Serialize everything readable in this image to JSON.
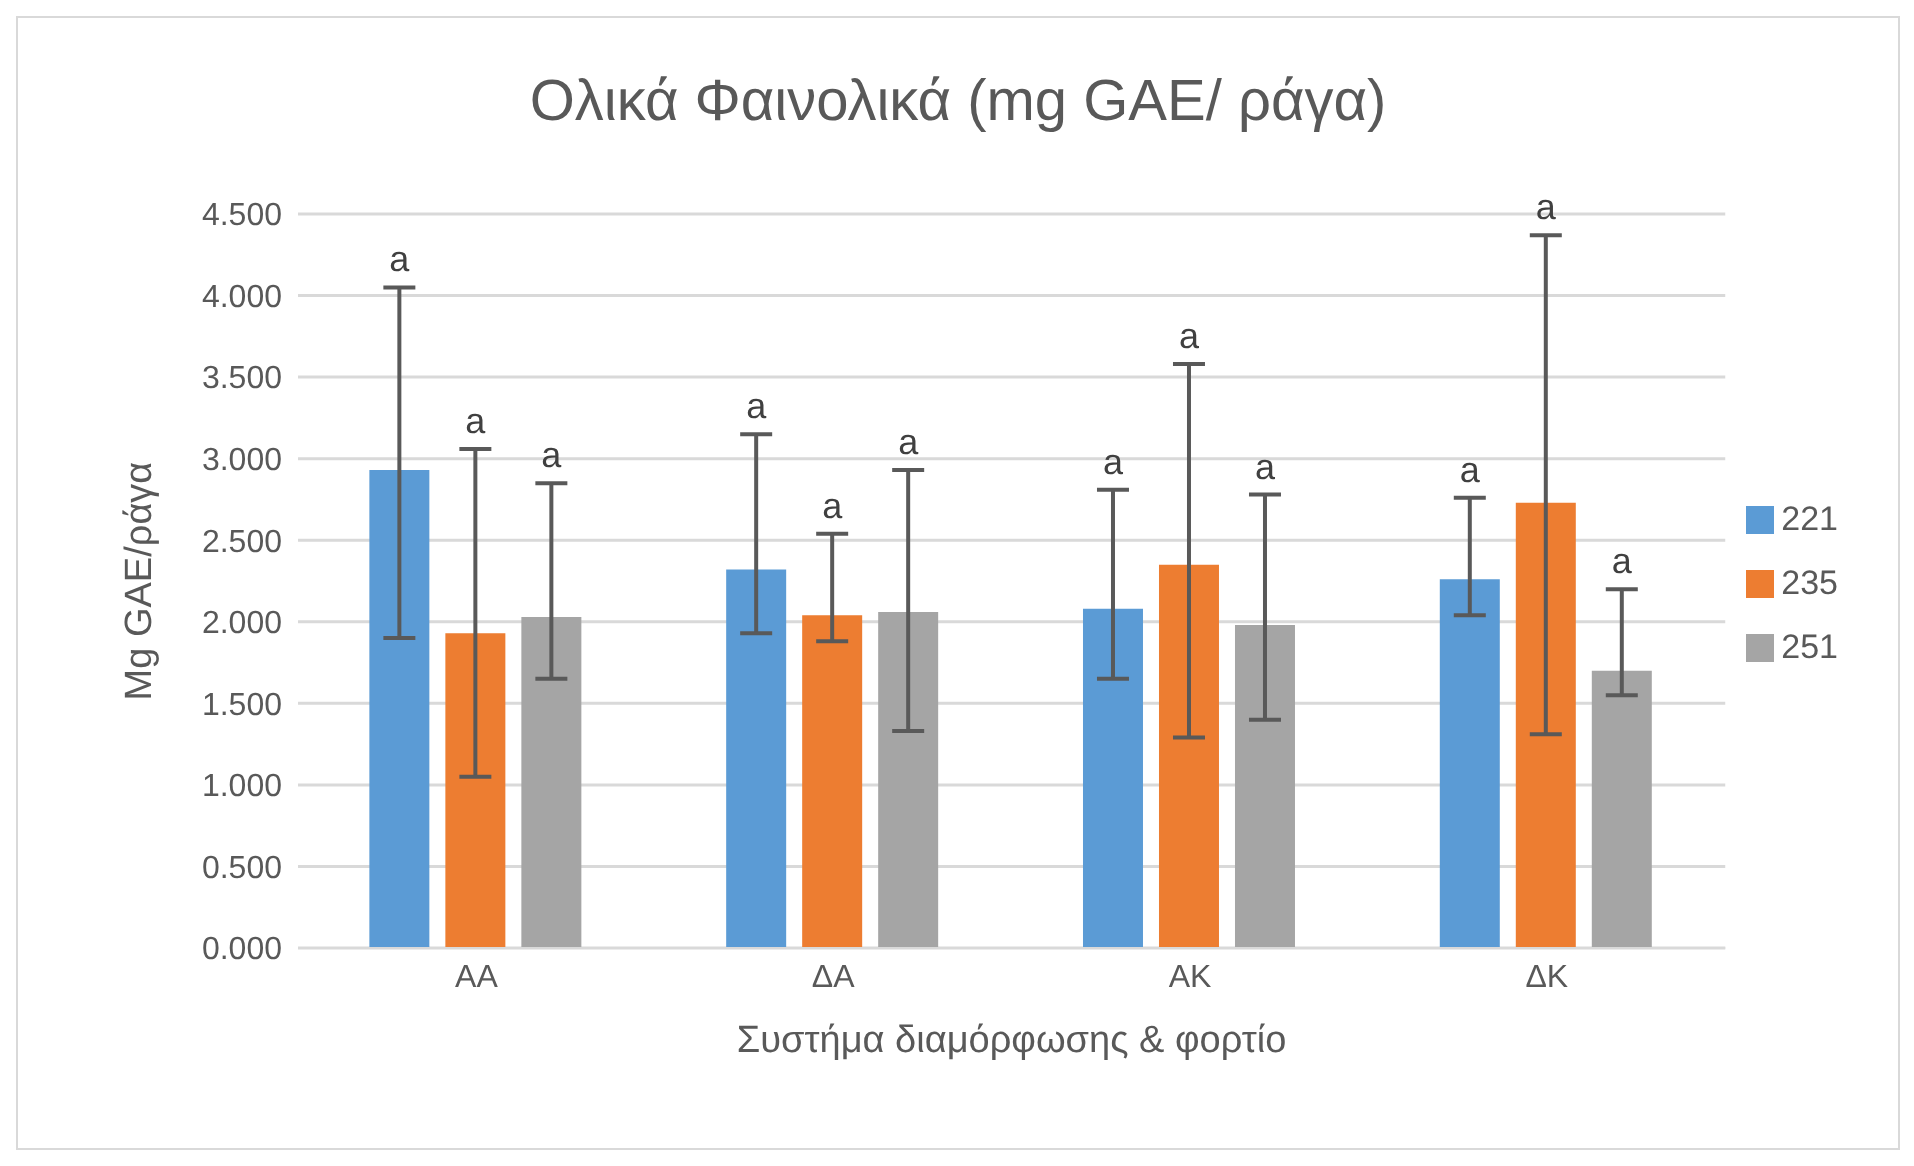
{
  "chart_data": {
    "type": "bar",
    "title": "Ολικά Φαινολικά (mg GAE/ ράγα)",
    "xlabel": "Συστήμα διαμόρφωσης & φορτίο",
    "ylabel": "Mg GAE/ράγα",
    "categories": [
      "ΑΑ",
      "ΔΑ",
      "ΑΚ",
      "ΔΚ"
    ],
    "series": [
      {
        "name": "221",
        "color": "#5b9bd5",
        "values": [
          2.93,
          2.32,
          2.08,
          2.26
        ],
        "errors": [
          [
            1.9,
            4.05
          ],
          [
            1.93,
            3.15
          ],
          [
            1.65,
            2.81
          ],
          [
            2.04,
            2.76
          ]
        ]
      },
      {
        "name": "235",
        "color": "#ed7d31",
        "values": [
          1.93,
          2.04,
          2.35,
          2.73
        ],
        "errors": [
          [
            1.05,
            3.06
          ],
          [
            1.88,
            2.54
          ],
          [
            1.29,
            3.58
          ],
          [
            1.31,
            4.37
          ]
        ]
      },
      {
        "name": "251",
        "color": "#a5a5a5",
        "values": [
          2.03,
          2.06,
          1.98,
          1.7
        ],
        "errors": [
          [
            1.65,
            2.85
          ],
          [
            1.33,
            2.93
          ],
          [
            1.4,
            2.78
          ],
          [
            1.55,
            2.2
          ]
        ]
      }
    ],
    "ylim": [
      0,
      4.5
    ],
    "yticks": [
      {
        "value": 0,
        "label": "0.000"
      },
      {
        "value": 0.5,
        "label": "0.500"
      },
      {
        "value": 1,
        "label": "1.000"
      },
      {
        "value": 1.5,
        "label": "1.500"
      },
      {
        "value": 2,
        "label": "2.000"
      },
      {
        "value": 2.5,
        "label": "2.500"
      },
      {
        "value": 3,
        "label": "3.000"
      },
      {
        "value": 3.5,
        "label": "3.500"
      },
      {
        "value": 4,
        "label": "4.000"
      },
      {
        "value": 4.5,
        "label": "4.500"
      }
    ],
    "annotations": [
      "a",
      "a",
      "a",
      "a",
      "a",
      "a",
      "a",
      "a",
      "a",
      "a",
      "a",
      "a"
    ],
    "grid": "y",
    "legend": "right"
  }
}
